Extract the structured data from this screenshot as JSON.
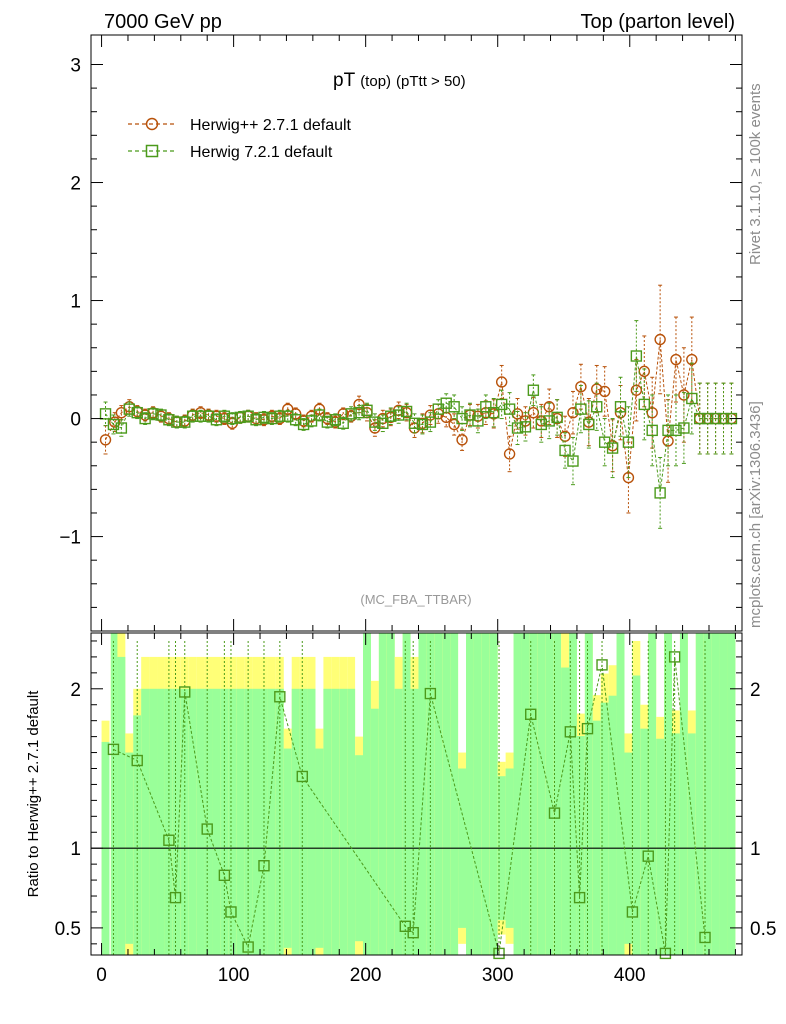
{
  "header": {
    "left": "7000 GeV pp",
    "right": "Top (parton level)"
  },
  "side_text": {
    "rivet": "Rivet 3.1.10, ≥ 100k events",
    "mcplots": "mcplots.cern.ch [arXiv:1306.3436]"
  },
  "chart_data": [
    {
      "type": "scatter",
      "title_main": "pT",
      "title_sub": "(top)",
      "title_cut": "(pTtt > 50)",
      "watermark": "(MC_FBA_TTBAR)",
      "xlim": [
        -8,
        485
      ],
      "ylim": [
        -1.8,
        3.25
      ],
      "yticks": [
        -1,
        0,
        1,
        2,
        3
      ],
      "ytick_labels": [
        "−1",
        "0",
        "1",
        "2",
        "3"
      ],
      "legend_position": "top-left",
      "series": [
        {
          "name": "Herwig++ 2.7.1 default",
          "color": "#b8520a",
          "marker": "circle",
          "x": [
            3,
            10,
            15,
            21,
            27,
            33,
            39,
            45,
            51,
            57,
            63,
            69,
            75,
            81,
            87,
            93,
            99,
            105,
            111,
            117,
            123,
            129,
            135,
            141,
            147,
            153,
            159,
            165,
            171,
            177,
            183,
            189,
            195,
            201,
            207,
            213,
            219,
            225,
            231,
            237,
            243,
            249,
            255,
            261,
            267,
            273,
            279,
            285,
            291,
            297,
            303,
            309,
            315,
            321,
            327,
            333,
            339,
            345,
            351,
            357,
            363,
            369,
            375,
            381,
            387,
            393,
            399,
            405,
            411,
            417,
            423,
            429,
            435,
            441,
            447,
            453,
            459,
            465,
            471,
            477
          ],
          "y": [
            -0.18,
            -0.03,
            0.05,
            0.1,
            0.06,
            0.03,
            0.05,
            0.02,
            0.0,
            -0.03,
            -0.02,
            0.03,
            0.05,
            0.03,
            0.02,
            0.0,
            -0.04,
            0.01,
            0.02,
            0.0,
            -0.01,
            0.02,
            0.0,
            0.08,
            0.04,
            -0.02,
            0.02,
            0.08,
            0.0,
            -0.03,
            0.04,
            0.02,
            0.12,
            0.05,
            -0.08,
            0.0,
            0.01,
            0.07,
            0.05,
            -0.08,
            -0.04,
            0.03,
            0.04,
            0.01,
            -0.05,
            -0.18,
            0.03,
            0.02,
            0.05,
            0.04,
            0.31,
            -0.3,
            0.04,
            -0.02,
            0.05,
            -0.02,
            0.1,
            0.0,
            -0.15,
            0.05,
            0.27,
            -0.03,
            0.25,
            0.23,
            -0.23,
            0.05,
            -0.5,
            0.24,
            0.4,
            0.05,
            0.67,
            -0.19,
            0.5,
            0.2,
            0.5,
            0.0,
            0.0,
            0.0,
            0.0,
            0.0
          ],
          "err": [
            0.12,
            0.08,
            0.06,
            0.06,
            0.05,
            0.05,
            0.05,
            0.05,
            0.05,
            0.05,
            0.05,
            0.05,
            0.05,
            0.05,
            0.05,
            0.05,
            0.05,
            0.05,
            0.05,
            0.05,
            0.05,
            0.05,
            0.05,
            0.05,
            0.05,
            0.05,
            0.05,
            0.05,
            0.05,
            0.05,
            0.05,
            0.05,
            0.07,
            0.07,
            0.07,
            0.07,
            0.07,
            0.07,
            0.07,
            0.08,
            0.08,
            0.08,
            0.08,
            0.08,
            0.09,
            0.09,
            0.09,
            0.1,
            0.1,
            0.12,
            0.14,
            0.15,
            0.13,
            0.12,
            0.13,
            0.14,
            0.15,
            0.16,
            0.17,
            0.18,
            0.19,
            0.2,
            0.2,
            0.21,
            0.22,
            0.23,
            0.3,
            0.26,
            0.3,
            0.3,
            0.46,
            0.35,
            0.36,
            0.4,
            0.36,
            0.3,
            0.3,
            0.3,
            0.3,
            0.3
          ]
        },
        {
          "name": "Herwig 7.2.1 default",
          "color": "#4b9a1b",
          "marker": "square",
          "x": [
            3,
            9,
            15,
            21,
            27,
            33,
            39,
            45,
            51,
            57,
            63,
            69,
            75,
            81,
            87,
            93,
            99,
            105,
            111,
            117,
            123,
            129,
            135,
            141,
            147,
            153,
            159,
            165,
            171,
            177,
            183,
            189,
            195,
            201,
            207,
            213,
            219,
            225,
            231,
            237,
            243,
            249,
            255,
            261,
            267,
            273,
            279,
            285,
            291,
            297,
            303,
            309,
            315,
            321,
            327,
            333,
            339,
            345,
            351,
            357,
            363,
            369,
            375,
            381,
            387,
            393,
            399,
            405,
            411,
            417,
            423,
            429,
            435,
            441,
            447,
            453,
            459,
            465,
            471,
            477
          ],
          "y": [
            0.04,
            -0.05,
            -0.08,
            0.08,
            0.05,
            0.0,
            0.04,
            0.03,
            -0.01,
            -0.03,
            -0.03,
            0.02,
            0.02,
            0.02,
            -0.01,
            0.02,
            0.0,
            0.01,
            0.02,
            -0.01,
            0.01,
            0.0,
            0.02,
            0.02,
            -0.01,
            -0.05,
            -0.02,
            0.03,
            -0.03,
            -0.01,
            -0.04,
            0.04,
            0.05,
            0.07,
            -0.03,
            -0.04,
            0.02,
            0.03,
            0.06,
            -0.04,
            -0.05,
            -0.03,
            0.08,
            0.13,
            0.1,
            0.0,
            0.03,
            -0.02,
            0.1,
            0.05,
            0.12,
            0.08,
            -0.08,
            -0.07,
            0.24,
            -0.05,
            -0.02,
            0.01,
            -0.27,
            -0.36,
            0.08,
            -0.05,
            0.1,
            -0.2,
            -0.25,
            0.1,
            -0.2,
            0.53,
            0.12,
            -0.1,
            -0.63,
            -0.1,
            -0.1,
            -0.08,
            0.17,
            0.0,
            0.0,
            0.0,
            0.0,
            0.0
          ],
          "err": [
            0.1,
            0.08,
            0.07,
            0.06,
            0.05,
            0.05,
            0.05,
            0.05,
            0.05,
            0.05,
            0.05,
            0.05,
            0.05,
            0.05,
            0.05,
            0.05,
            0.05,
            0.05,
            0.05,
            0.05,
            0.05,
            0.05,
            0.05,
            0.05,
            0.05,
            0.05,
            0.05,
            0.05,
            0.05,
            0.05,
            0.05,
            0.06,
            0.06,
            0.06,
            0.07,
            0.07,
            0.07,
            0.07,
            0.07,
            0.08,
            0.08,
            0.08,
            0.08,
            0.08,
            0.1,
            0.1,
            0.1,
            0.1,
            0.1,
            0.12,
            0.12,
            0.14,
            0.14,
            0.12,
            0.13,
            0.15,
            0.15,
            0.15,
            0.15,
            0.2,
            0.2,
            0.2,
            0.2,
            0.2,
            0.25,
            0.25,
            0.3,
            0.3,
            0.3,
            0.3,
            0.3,
            0.3,
            0.3,
            0.3,
            0.3,
            0.3,
            0.3,
            0.3,
            0.3,
            0.3
          ]
        }
      ]
    },
    {
      "type": "scatter",
      "ylabel": "Ratio to Herwig++ 2.7.1 default",
      "xlim": [
        -8,
        485
      ],
      "ylim": [
        0.33,
        2.35
      ],
      "xticks": [
        0,
        100,
        200,
        300,
        400
      ],
      "xtick_labels": [
        "0",
        "100",
        "200",
        "300",
        "400"
      ],
      "yticks": [
        0.5,
        1,
        2
      ],
      "ytick_labels": [
        "0.5",
        "1",
        "2"
      ],
      "reference_line": 1,
      "band_colors": {
        "outer": "#ffff77",
        "inner": "#99ff99"
      },
      "series": [
        {
          "name": "Herwig 7.2.1 default",
          "color": "#4b9a1b",
          "marker": "square",
          "x": [
            9,
            27,
            51,
            56,
            63,
            80,
            93,
            98,
            111,
            123,
            135,
            152,
            230,
            236,
            249,
            301,
            325,
            343,
            355,
            362,
            368,
            379,
            402,
            414,
            427,
            434,
            457
          ],
          "y": [
            1.62,
            1.55,
            1.05,
            0.69,
            1.98,
            1.12,
            0.83,
            0.6,
            0.38,
            0.89,
            1.95,
            1.45,
            0.51,
            0.47,
            1.97,
            0.34,
            1.84,
            1.22,
            1.73,
            0.69,
            1.75,
            2.15,
            0.6,
            0.95,
            0.34,
            2.2,
            0.44
          ]
        }
      ]
    }
  ]
}
